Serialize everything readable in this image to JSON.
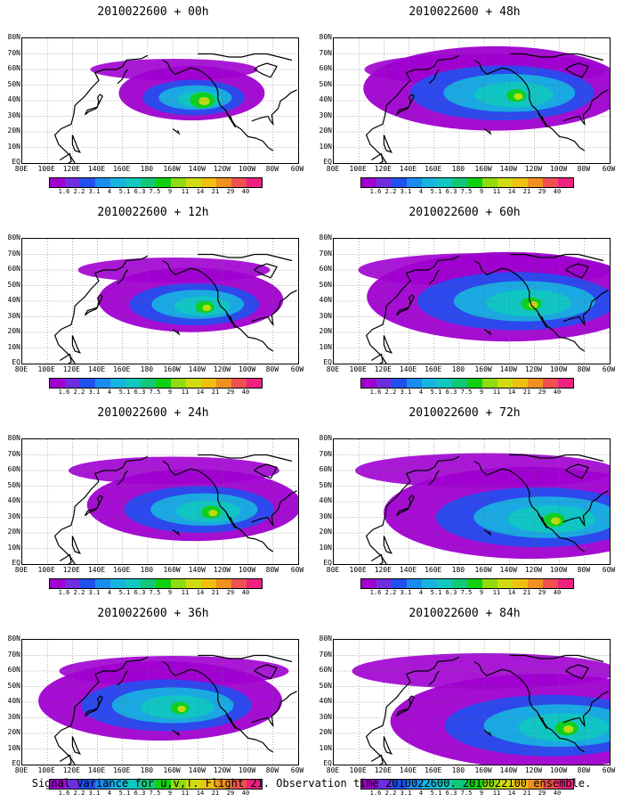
{
  "panels": [
    {
      "title": "2010022600 + 00h",
      "lead": "00h",
      "spread": 0.2,
      "peak": 0.85,
      "center_lon": -142,
      "center_lat": 42
    },
    {
      "title": "2010022600 + 48h",
      "lead": "48h",
      "spread": 0.8,
      "peak": 0.6,
      "center_lon": -140,
      "center_lat": 45
    },
    {
      "title": "2010022600 + 12h",
      "lead": "12h",
      "spread": 0.4,
      "peak": 0.55,
      "center_lon": -140,
      "center_lat": 38
    },
    {
      "title": "2010022600 + 60h",
      "lead": "60h",
      "spread": 0.9,
      "peak": 0.65,
      "center_lon": -128,
      "center_lat": 40
    },
    {
      "title": "2010022600 + 24h",
      "lead": "24h",
      "spread": 0.55,
      "peak": 0.6,
      "center_lon": -135,
      "center_lat": 35
    },
    {
      "title": "2010022600 + 72h",
      "lead": "72h",
      "spread": 0.95,
      "peak": 0.7,
      "center_lon": -110,
      "center_lat": 30
    },
    {
      "title": "2010022600 + 36h",
      "lead": "36h",
      "spread": 0.7,
      "peak": 0.55,
      "center_lon": -160,
      "center_lat": 38
    },
    {
      "title": "2010022600 + 84h",
      "lead": "84h",
      "spread": 1.0,
      "peak": 0.75,
      "center_lon": -100,
      "center_lat": 25
    }
  ],
  "lat_labels": [
    "80N",
    "70N",
    "60N",
    "50N",
    "40N",
    "30N",
    "20N",
    "10N",
    "EQ"
  ],
  "lon_labels": [
    "80E",
    "100E",
    "120E",
    "140E",
    "160E",
    "180",
    "160W",
    "140W",
    "120W",
    "100W",
    "80W",
    "60W"
  ],
  "colorbar": {
    "labels": [
      "1.6",
      "2.2",
      "3.1",
      "4",
      "5.1",
      "6.3",
      "7.5",
      "9",
      "11",
      "14",
      "21",
      "29",
      "40"
    ],
    "colors": [
      "#a000d0",
      "#6e2ee0",
      "#2050f0",
      "#1a8cf0",
      "#18b4e0",
      "#10c8c0",
      "#10c878",
      "#10d010",
      "#90dc10",
      "#d0dc10",
      "#f0c010",
      "#f09020",
      "#f05050",
      "#f02080"
    ]
  },
  "caption": "Signal Variance for u,v,T. Flight 21. Observation time 2010022600. 2010022100 ensemble."
}
